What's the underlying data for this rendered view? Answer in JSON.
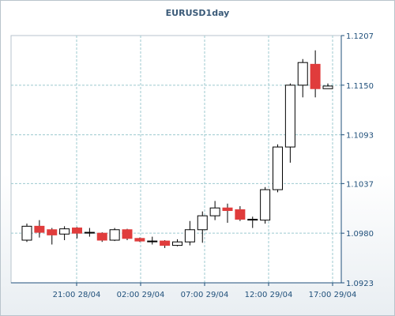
{
  "chart_data": {
    "type": "candlestick",
    "title": "EURUSD1day",
    "ylim": [
      1.0923,
      1.1207
    ],
    "y_ticks": [
      "1.1207",
      "1.1150",
      "1.1093",
      "1.1037",
      "1.0980",
      "1.0923"
    ],
    "x_ticks": [
      "21:00 28/04",
      "02:00 29/04",
      "07:00 29/04",
      "12:00 29/04",
      "17:00 29/04"
    ],
    "grid": true,
    "colors": {
      "up": "#ffffff",
      "down": "#e03c3c",
      "wick": "#000000",
      "grid": "#9cc9cf"
    },
    "candles": [
      {
        "open": 1.0972,
        "high": 1.0991,
        "low": 1.097,
        "close": 1.0988
      },
      {
        "open": 1.0988,
        "high": 1.0995,
        "low": 1.0975,
        "close": 1.0981
      },
      {
        "open": 1.0984,
        "high": 1.0986,
        "low": 1.0967,
        "close": 1.0978
      },
      {
        "open": 1.0979,
        "high": 1.0988,
        "low": 1.0972,
        "close": 1.0985
      },
      {
        "open": 1.0986,
        "high": 1.0987,
        "low": 1.0974,
        "close": 1.098
      },
      {
        "open": 1.0981,
        "high": 1.0986,
        "low": 1.0976,
        "close": 1.0981
      },
      {
        "open": 1.098,
        "high": 1.0981,
        "low": 1.097,
        "close": 1.0972
      },
      {
        "open": 1.0972,
        "high": 1.0986,
        "low": 1.0971,
        "close": 1.0984
      },
      {
        "open": 1.0984,
        "high": 1.0985,
        "low": 1.0972,
        "close": 1.0974
      },
      {
        "open": 1.0974,
        "high": 1.0975,
        "low": 1.097,
        "close": 1.0971
      },
      {
        "open": 1.0971,
        "high": 1.0976,
        "low": 1.0967,
        "close": 1.0971
      },
      {
        "open": 1.0971,
        "high": 1.0972,
        "low": 1.0963,
        "close": 1.0966
      },
      {
        "open": 1.0966,
        "high": 1.0973,
        "low": 1.0965,
        "close": 1.097
      },
      {
        "open": 1.097,
        "high": 1.0994,
        "low": 1.0966,
        "close": 1.0984
      },
      {
        "open": 1.0984,
        "high": 1.1005,
        "low": 1.0969,
        "close": 1.1
      },
      {
        "open": 1.1,
        "high": 1.1017,
        "low": 1.0995,
        "close": 1.1009
      },
      {
        "open": 1.1009,
        "high": 1.1014,
        "low": 1.0992,
        "close": 1.1006
      },
      {
        "open": 1.1007,
        "high": 1.1011,
        "low": 1.0994,
        "close": 1.0996
      },
      {
        "open": 1.0995,
        "high": 1.0999,
        "low": 1.0986,
        "close": 1.0996
      },
      {
        "open": 1.0995,
        "high": 1.1033,
        "low": 1.0991,
        "close": 1.103
      },
      {
        "open": 1.103,
        "high": 1.1082,
        "low": 1.1027,
        "close": 1.1079
      },
      {
        "open": 1.1079,
        "high": 1.1152,
        "low": 1.1061,
        "close": 1.115
      },
      {
        "open": 1.115,
        "high": 1.118,
        "low": 1.1136,
        "close": 1.1176
      },
      {
        "open": 1.1174,
        "high": 1.119,
        "low": 1.1136,
        "close": 1.1146
      },
      {
        "open": 1.1146,
        "high": 1.1152,
        "low": 1.1146,
        "close": 1.1149
      }
    ]
  }
}
